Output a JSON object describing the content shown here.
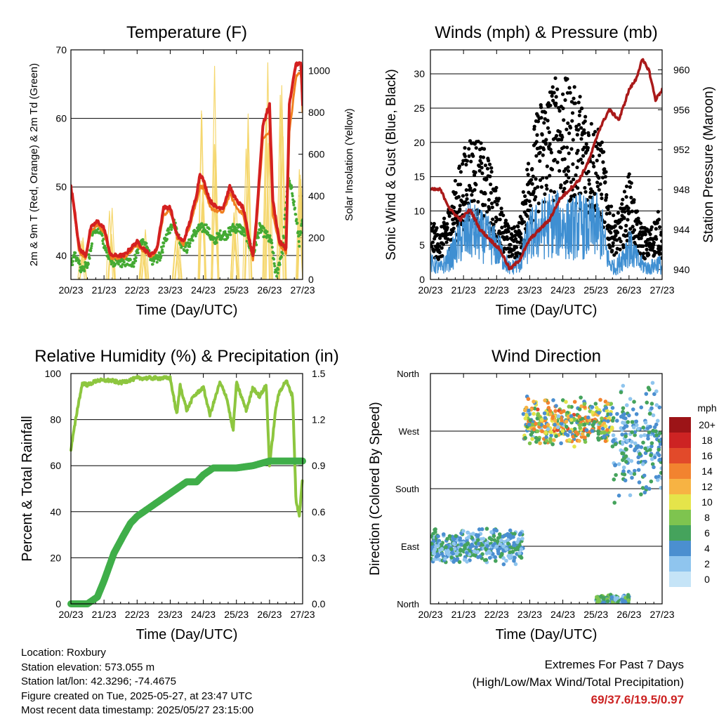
{
  "chart_data": [
    {
      "type": "line",
      "title": "Temperature (F)",
      "xlabel": "Time (Day/UTC)",
      "ylabel_left": "2m & 9m T (Red, Orange) & 2m Td (Green)",
      "ylabel_right": "Solar Insolation (Yellow)",
      "x_ticks": [
        "20/23",
        "21/23",
        "22/23",
        "23/23",
        "24/23",
        "25/23",
        "26/23",
        "27/23"
      ],
      "ylim": [
        36.5,
        70
      ],
      "yticks": [
        40,
        50,
        60,
        70
      ],
      "y2lim": [
        0,
        1100
      ],
      "y2ticks": [
        0,
        200,
        400,
        600,
        800,
        1000
      ],
      "series": [
        {
          "color": "#d42020",
          "x": [
            0,
            0.1,
            0.25,
            0.45,
            0.6,
            0.8,
            1.0,
            1.2,
            1.4,
            1.6,
            1.8,
            2.0,
            2.2,
            2.4,
            2.6,
            2.8,
            3.0,
            3.2,
            3.4,
            3.6,
            3.8,
            3.9,
            4.0,
            4.2,
            4.4,
            4.6,
            4.8,
            5.0,
            5.2,
            5.4,
            5.5,
            5.6,
            5.8,
            6.0,
            6.1,
            6.3,
            6.5,
            6.6,
            6.8,
            6.95,
            7.0
          ],
          "values": [
            50,
            47,
            41,
            40,
            44,
            45,
            44,
            40,
            40,
            40,
            41,
            42,
            41,
            40,
            41,
            47,
            47,
            43,
            42,
            45,
            49,
            52,
            51,
            48,
            47,
            47,
            50,
            48,
            47,
            42,
            40,
            45,
            59,
            62,
            48,
            42,
            41,
            62,
            68,
            68,
            62
          ]
        },
        {
          "color": "#f08020",
          "x": [
            0,
            0.1,
            0.25,
            0.45,
            0.6,
            0.8,
            1.0,
            1.2,
            1.4,
            1.6,
            1.8,
            2.0,
            2.2,
            2.4,
            2.6,
            2.8,
            3.0,
            3.2,
            3.4,
            3.6,
            3.8,
            3.9,
            4.0,
            4.2,
            4.4,
            4.6,
            4.8,
            5.0,
            5.2,
            5.4,
            5.5,
            5.6,
            5.8,
            6.0,
            6.1,
            6.3,
            6.5,
            6.6,
            6.8,
            6.95,
            7.0
          ],
          "values": [
            49.5,
            46.5,
            40.5,
            39.7,
            43.5,
            44.5,
            43.5,
            39.7,
            39.7,
            39.7,
            40.7,
            41.5,
            40.7,
            39.8,
            40.7,
            46,
            46.5,
            42.7,
            41.7,
            44.5,
            48,
            50,
            50,
            47,
            46.5,
            46.3,
            49,
            47,
            46,
            41.5,
            39.5,
            44,
            57,
            58,
            46,
            41.5,
            40.5,
            58,
            66,
            67,
            61
          ]
        },
        {
          "color": "#44aa33",
          "x": [
            0,
            0.15,
            0.3,
            0.5,
            0.7,
            0.9,
            1.1,
            1.3,
            1.5,
            1.7,
            1.9,
            2.1,
            2.3,
            2.5,
            2.7,
            2.9,
            3.1,
            3.3,
            3.5,
            3.7,
            3.9,
            4.1,
            4.3,
            4.5,
            4.7,
            4.9,
            5.1,
            5.3,
            5.5,
            5.7,
            5.9,
            6.05,
            6.2,
            6.4,
            6.55,
            6.7,
            6.9,
            7.0
          ],
          "values": [
            39,
            40,
            38,
            38.5,
            44,
            43.5,
            40,
            39,
            39,
            39,
            39,
            42,
            41,
            39,
            40,
            43,
            45,
            42,
            41,
            43,
            44,
            44,
            42,
            43,
            43,
            44,
            44,
            43,
            40,
            44,
            43,
            42,
            37,
            41,
            51,
            49,
            42,
            45
          ]
        },
        {
          "color": "#f5d76e",
          "type": "spikes",
          "peaks_x": [
            0.35,
            1.2,
            2.2,
            3.2,
            3.95,
            4.35,
            4.95,
            5.35,
            5.95,
            6.35,
            6.95
          ],
          "peaks_value": [
            200,
            380,
            260,
            330,
            880,
            1060,
            600,
            880,
            1070,
            1020,
            550
          ]
        }
      ]
    },
    {
      "type": "scatter",
      "title": "Winds (mph) & Pressure (mb)",
      "xlabel": "Time (Day/UTC)",
      "ylabel_left": "Sonic Wind & Gust (Blue, Black)",
      "ylabel_right": "Station Pressure (Maroon)",
      "x_ticks": [
        "20/23",
        "21/23",
        "22/23",
        "23/23",
        "24/23",
        "25/23",
        "26/23",
        "27/23"
      ],
      "ylim": [
        0,
        33.5
      ],
      "yticks": [
        0,
        5,
        10,
        15,
        20,
        25,
        30
      ],
      "y2lim": [
        939,
        962
      ],
      "y2ticks": [
        940,
        944,
        948,
        952,
        956,
        960
      ],
      "series": [
        {
          "name": "Sonic Wind",
          "color": "#3f8fd2",
          "x": [
            0,
            0.3,
            0.6,
            0.9,
            1.2,
            1.5,
            1.8,
            2.1,
            2.4,
            2.7,
            3.0,
            3.3,
            3.6,
            3.9,
            4.2,
            4.5,
            4.8,
            5.0,
            5.2,
            5.4,
            5.6,
            5.8,
            6.0,
            6.3,
            6.6,
            6.9,
            7.0
          ],
          "values": [
            3,
            2,
            4,
            7,
            9,
            8,
            7,
            5,
            2,
            3,
            8,
            9,
            10,
            10,
            9,
            10,
            9,
            10,
            8,
            3,
            2,
            4,
            6,
            3,
            2,
            3,
            2
          ]
        },
        {
          "name": "Gust",
          "color": "#000000",
          "x": [
            0,
            0.3,
            0.6,
            0.9,
            1.2,
            1.5,
            1.8,
            2.1,
            2.4,
            2.7,
            3.0,
            3.3,
            3.6,
            3.9,
            4.2,
            4.5,
            4.8,
            5.0,
            5.2,
            5.4,
            5.6,
            5.8,
            6.0,
            6.3,
            6.6,
            6.9,
            7.0
          ],
          "values": [
            6,
            5,
            8,
            12,
            15,
            14,
            12,
            8,
            5,
            6,
            14,
            18,
            20,
            21,
            20,
            19,
            17,
            16,
            14,
            8,
            6,
            8,
            11,
            6,
            5,
            7,
            5
          ]
        },
        {
          "name": "Station Pressure",
          "color": "#aa1a1a",
          "axis": "right",
          "x": [
            0,
            0.3,
            0.6,
            0.9,
            1.2,
            1.5,
            1.8,
            2.1,
            2.4,
            2.7,
            3.0,
            3.3,
            3.6,
            3.9,
            4.2,
            4.5,
            4.8,
            5.1,
            5.4,
            5.7,
            6.0,
            6.2,
            6.4,
            6.6,
            6.8,
            7.0
          ],
          "values": [
            948,
            948,
            946,
            945,
            946,
            944,
            943,
            942,
            940,
            941,
            943,
            944,
            945,
            947,
            948,
            949,
            951,
            954,
            956,
            955,
            958,
            959,
            961,
            960,
            957,
            958
          ]
        }
      ]
    },
    {
      "type": "line",
      "title": "Relative Humidity (%) & Precipitation (in)",
      "xlabel": "Time (Day/UTC)",
      "ylabel_left": "Percent & Total Rainfall",
      "x_ticks": [
        "20/23",
        "21/23",
        "22/23",
        "23/23",
        "24/23",
        "25/23",
        "26/23",
        "27/23"
      ],
      "ylim": [
        0,
        100
      ],
      "yticks": [
        0,
        20,
        40,
        60,
        80,
        100
      ],
      "y2lim": [
        0,
        1.5
      ],
      "y2ticks": [
        "0.0",
        "0.3",
        "0.6",
        "0.9",
        "1.2",
        "1.5"
      ],
      "series": [
        {
          "color": "#8dc63f",
          "x": [
            0,
            0.2,
            0.35,
            0.5,
            0.8,
            1.2,
            1.5,
            2.0,
            2.5,
            3.0,
            3.2,
            3.3,
            3.5,
            3.7,
            4.0,
            4.2,
            4.5,
            4.7,
            4.9,
            5.0,
            5.1,
            5.3,
            5.5,
            5.7,
            5.9,
            6.0,
            6.2,
            6.3,
            6.5,
            6.7,
            6.8,
            6.9,
            7.0
          ],
          "values": [
            67,
            85,
            96,
            95,
            97,
            97,
            96,
            98,
            98,
            98,
            82,
            95,
            84,
            90,
            94,
            82,
            96,
            90,
            75,
            96,
            92,
            84,
            94,
            90,
            95,
            60,
            86,
            92,
            97,
            90,
            45,
            38,
            55
          ]
        },
        {
          "color": "#3fae49",
          "x": [
            0,
            0.5,
            0.8,
            1.0,
            1.3,
            1.6,
            1.8,
            2.0,
            2.3,
            2.5,
            3.0,
            3.5,
            3.8,
            4.0,
            4.3,
            5.0,
            5.5,
            6.0,
            7.0
          ],
          "values": [
            0,
            0,
            3,
            10,
            22,
            30,
            35,
            38,
            41,
            43,
            48,
            53,
            53,
            56,
            59,
            59,
            60,
            62,
            62
          ]
        }
      ]
    },
    {
      "type": "scatter",
      "title": "Wind Direction",
      "xlabel": "Time (Day/UTC)",
      "ylabel": "Direction (Colored By Speed)",
      "x_ticks": [
        "20/23",
        "21/23",
        "22/23",
        "23/23",
        "24/23",
        "25/23",
        "26/23",
        "27/23"
      ],
      "y_ticks": [
        "North",
        "East",
        "South",
        "West",
        "North"
      ],
      "colorbar_title": "mph",
      "colorbar_labels": [
        "0",
        "2",
        "4",
        "6",
        "8",
        "10",
        "12",
        "14",
        "16",
        "18",
        "20+"
      ],
      "colorbar_colors": [
        "#c5e4f7",
        "#8fc5ee",
        "#4b8fd0",
        "#45a35c",
        "#7ec44f",
        "#e5e44a",
        "#f7b343",
        "#f2832f",
        "#e24a2a",
        "#cd2323",
        "#9c1417"
      ],
      "clusters": [
        {
          "x_range": [
            0,
            2.8
          ],
          "dir_center": 90,
          "dir_spread": 30,
          "speed": 4
        },
        {
          "x_range": [
            2.8,
            5.5
          ],
          "dir_center": 285,
          "dir_spread": 40,
          "speed": 9
        },
        {
          "x_range": [
            5.5,
            7.0
          ],
          "dir_center": 250,
          "dir_spread": 100,
          "speed": 4
        },
        {
          "x_range": [
            5.0,
            6.0
          ],
          "dir_center": 5,
          "dir_spread": 10,
          "speed": 5
        }
      ]
    }
  ],
  "info": {
    "location": "Location: Roxbury",
    "elevation": "Station elevation: 573.055 m",
    "latlon": "Station lat/lon: 42.3296; -74.4675",
    "created": "Figure created on Tue, 2025-05-27, at 23:47 UTC",
    "timestamp": "Most recent data timestamp: 2025/05/27 23:15:00"
  },
  "extremes": {
    "title": "Extremes For Past 7 Days",
    "subtitle": "(High/Low/Max Wind/Total Precipitation)",
    "values": "69/37.6/19.5/0.97"
  }
}
